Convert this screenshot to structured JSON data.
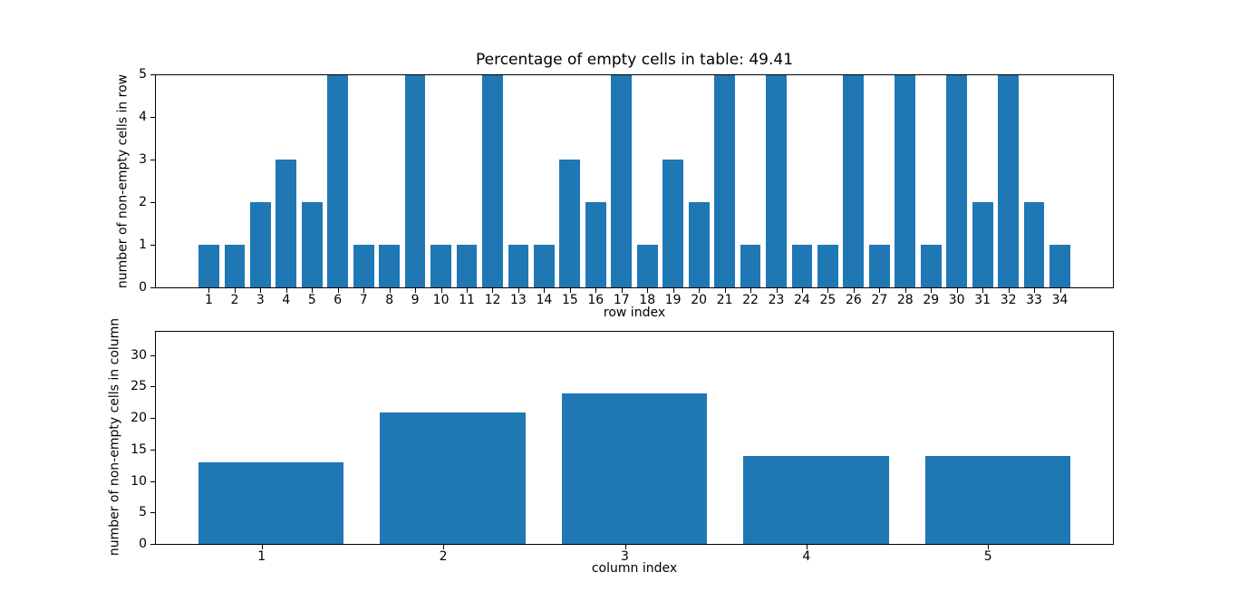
{
  "figure": {
    "background": "#ffffff",
    "bar_color": "#1f77b4",
    "spine_color": "#000000"
  },
  "chart_data": [
    {
      "type": "bar",
      "title": "Percentage of empty cells in table: 49.41",
      "xlabel": "row index",
      "ylabel": "number of non-empty cells in row",
      "categories": [
        1,
        2,
        3,
        4,
        5,
        6,
        7,
        8,
        9,
        10,
        11,
        12,
        13,
        14,
        15,
        16,
        17,
        18,
        19,
        20,
        21,
        22,
        23,
        24,
        25,
        26,
        27,
        28,
        29,
        30,
        31,
        32,
        33,
        34
      ],
      "values": [
        1,
        1,
        2,
        3,
        2,
        5,
        1,
        1,
        5,
        1,
        1,
        5,
        1,
        1,
        3,
        2,
        5,
        1,
        3,
        2,
        5,
        1,
        5,
        1,
        1,
        5,
        1,
        5,
        1,
        5,
        2,
        5,
        2,
        1
      ],
      "yticks": [
        0,
        1,
        2,
        3,
        4,
        5
      ],
      "ylim": [
        0,
        5
      ],
      "xlim": [
        -1.09,
        36.09
      ],
      "grid": false,
      "legend": null,
      "bar_color": "#1f77b4"
    },
    {
      "type": "bar",
      "title": "",
      "xlabel": "column index",
      "ylabel": "number of non-empty cells in column",
      "categories": [
        1,
        2,
        3,
        4,
        5
      ],
      "values": [
        13,
        21,
        24,
        14,
        14
      ],
      "yticks": [
        0,
        5,
        10,
        15,
        20,
        25,
        30
      ],
      "ylim": [
        0,
        34
      ],
      "xlim": [
        0.36,
        5.64
      ],
      "grid": false,
      "legend": null,
      "bar_color": "#1f77b4"
    }
  ]
}
